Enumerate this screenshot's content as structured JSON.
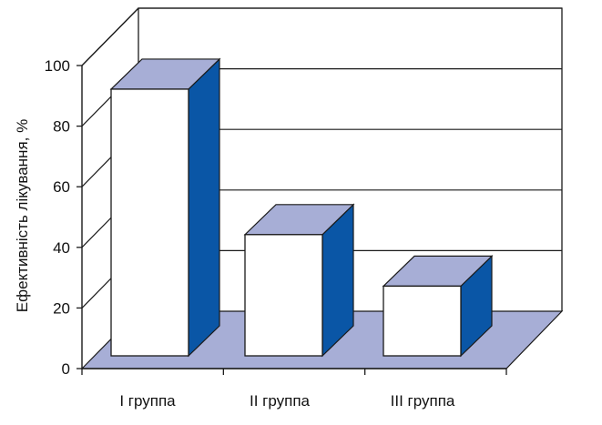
{
  "chart_data": {
    "type": "bar",
    "three_d": true,
    "categories": [
      "I группа",
      "II группа",
      "III группа"
    ],
    "values": [
      88,
      40,
      23
    ],
    "title": "",
    "xlabel": "",
    "ylabel": "Ефективність лікування, %",
    "ylim": [
      0,
      100
    ],
    "yticks": [
      0,
      20,
      40,
      60,
      80,
      100
    ],
    "grid": true,
    "legend": "none",
    "colors": {
      "bar_front": "#ffffff",
      "bar_top": "#a7aed6",
      "bar_side": "#0a56a6",
      "floor": "#a7aed6",
      "line": "#1a1a1a"
    }
  }
}
